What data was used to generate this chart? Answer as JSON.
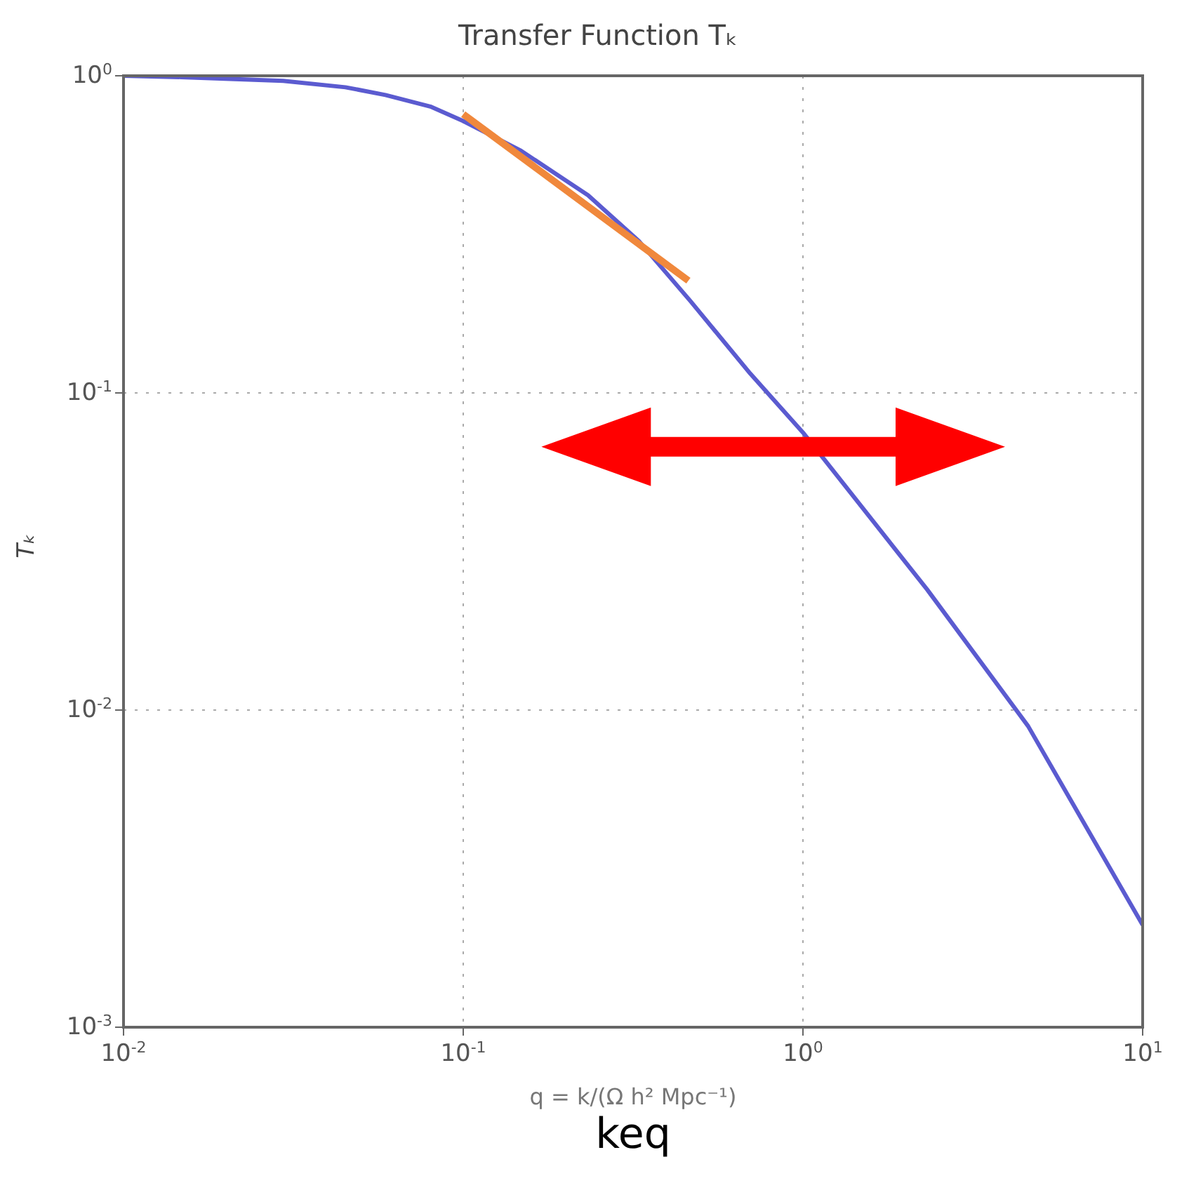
{
  "chart_data": {
    "type": "line",
    "title": "Transfer Function Tₖ",
    "xlabel": "q = k/(Ω h² Mpc⁻¹)",
    "ylabel": "Tₖ",
    "annotations": [
      "keq"
    ],
    "log": "xy",
    "grid": true,
    "xlim": [
      0.01,
      10
    ],
    "ylim": [
      0.001,
      1
    ],
    "xticks": [
      {
        "value": 0.01,
        "label": "10$^{-2}$"
      },
      {
        "value": 0.1,
        "label": "10$^{-1}$"
      },
      {
        "value": 1,
        "label": "10$^{0}$"
      },
      {
        "value": 10,
        "label": "10$^{1}$"
      }
    ],
    "yticks": [
      {
        "value": 0.001,
        "label": "10$^{-3}$"
      },
      {
        "value": 0.01,
        "label": "10$^{-2}$"
      },
      {
        "value": 0.1,
        "label": "10$^{-1}$"
      },
      {
        "value": 1,
        "label": "10$^{0}$"
      }
    ],
    "series": [
      {
        "color": "#5b5bd0",
        "x": [
          0.01,
          0.0148,
          0.0295,
          0.045,
          0.059,
          0.08,
          0.1,
          0.148,
          0.233,
          0.33,
          0.466,
          0.7,
          1.0,
          2.32,
          4.6,
          10
        ],
        "values": [
          1.0,
          0.99,
          0.964,
          0.92,
          0.87,
          0.8,
          0.72,
          0.58,
          0.42,
          0.3,
          0.195,
          0.115,
          0.075,
          0.024,
          0.0089,
          0.0021
        ]
      },
      {
        "color": "#f0883c",
        "x": [
          0.1,
          0.46
        ],
        "values": [
          0.757,
          0.226
        ]
      }
    ]
  }
}
